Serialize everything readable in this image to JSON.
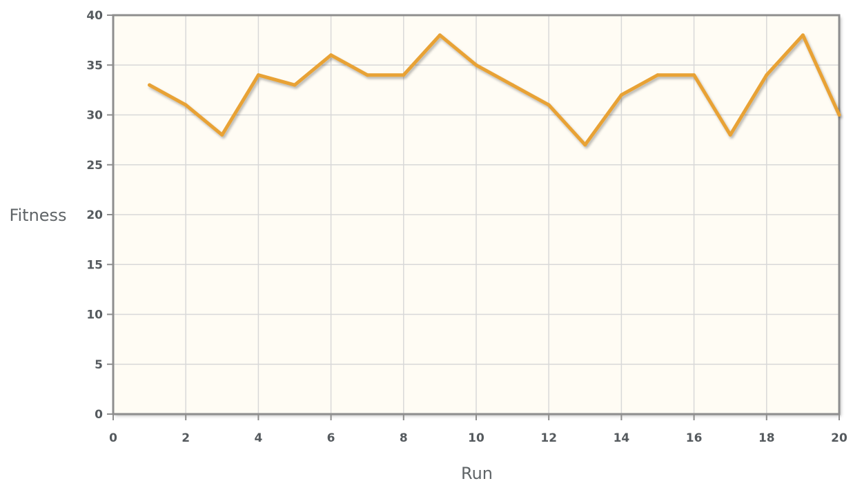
{
  "chart_data": {
    "type": "line",
    "title": "",
    "xlabel": "Run",
    "ylabel": "Fitness",
    "xlim": [
      0,
      20
    ],
    "ylim": [
      0,
      40
    ],
    "xticks": [
      0,
      2,
      4,
      6,
      8,
      10,
      12,
      14,
      16,
      18,
      20
    ],
    "yticks": [
      0,
      5,
      10,
      15,
      20,
      25,
      30,
      35,
      40
    ],
    "xgrid": true,
    "ygrid": true,
    "series": [
      {
        "color": "#e8a235",
        "x": [
          1,
          2,
          3,
          4,
          5,
          6,
          7,
          8,
          9,
          10,
          11,
          12,
          13,
          14,
          15,
          16,
          17,
          18,
          19,
          20
        ],
        "y": [
          33,
          31,
          28,
          34,
          33,
          36,
          34,
          34,
          38,
          35,
          33,
          31,
          27,
          32,
          34,
          34,
          28,
          34,
          38,
          30
        ]
      }
    ],
    "colors": {
      "plot_background": "#fffcf4",
      "grid": "#d8d8d8",
      "axis": "#8e8e8e",
      "text": "#555a5e"
    }
  }
}
